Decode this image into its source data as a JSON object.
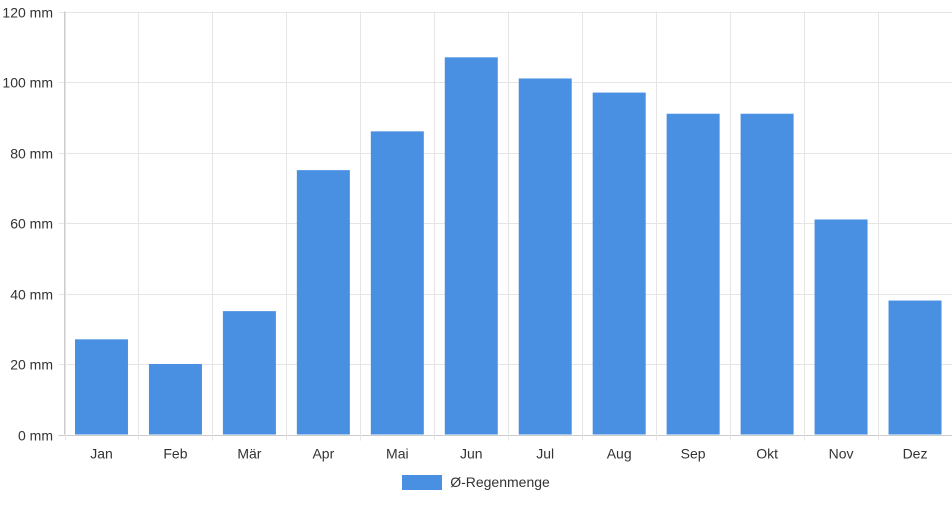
{
  "chart_data": {
    "type": "bar",
    "categories": [
      "Jan",
      "Feb",
      "Mär",
      "Apr",
      "Mai",
      "Jun",
      "Jul",
      "Aug",
      "Sep",
      "Okt",
      "Nov",
      "Dez"
    ],
    "series": [
      {
        "name": "Ø-Regenmenge",
        "values": [
          27,
          20,
          35,
          75,
          86,
          107,
          101,
          97,
          91,
          91,
          61,
          38
        ],
        "color": "#4a90e2"
      }
    ],
    "yticks": [
      "0 mm",
      "20 mm",
      "40 mm",
      "60 mm",
      "80 mm",
      "100 mm",
      "120 mm"
    ],
    "ylim": [
      0,
      120
    ],
    "y_unit": "mm",
    "grid": true,
    "legend_position": "bottom"
  }
}
